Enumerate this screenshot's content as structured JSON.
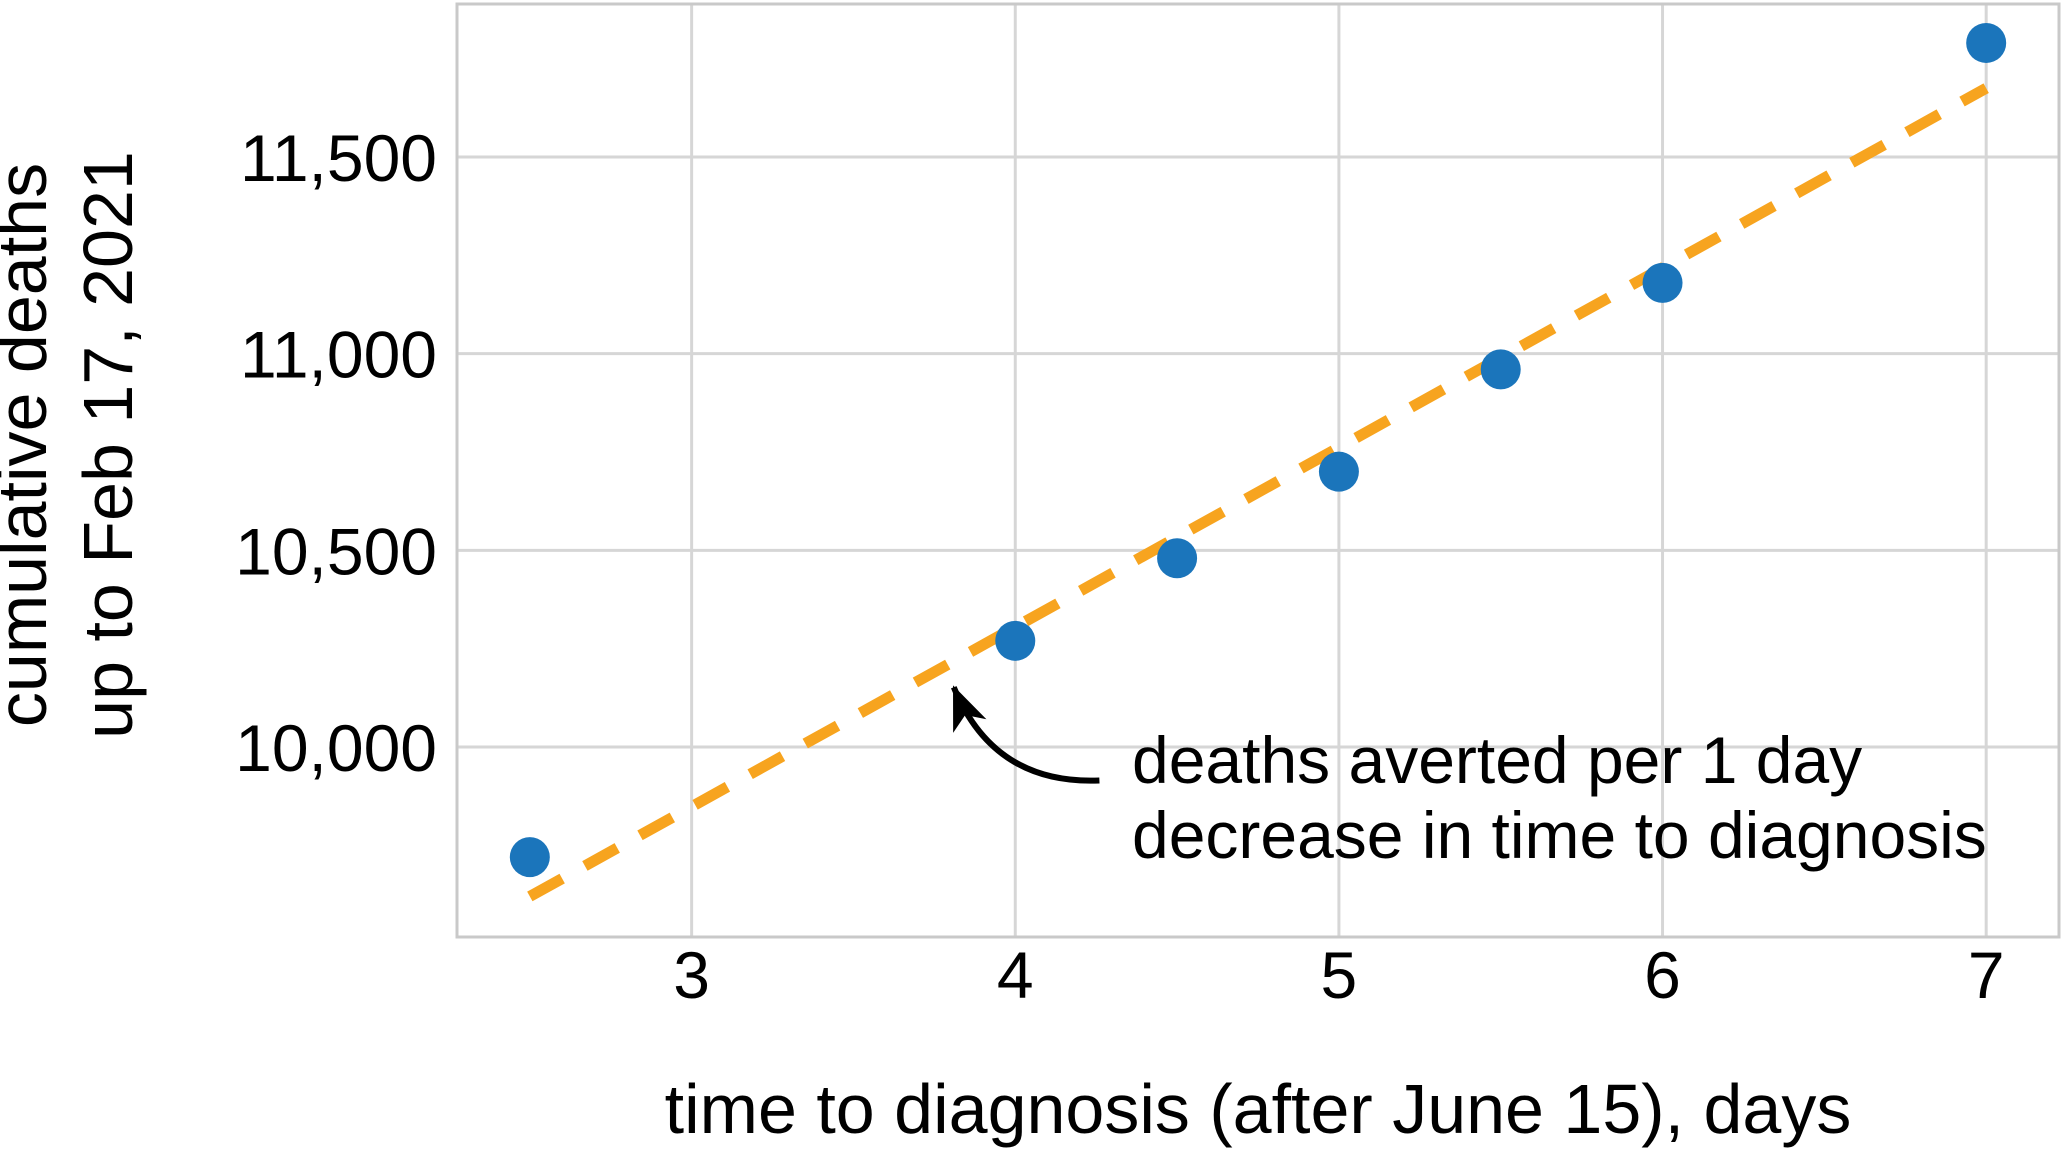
{
  "chart_data": {
    "type": "scatter",
    "title": "",
    "xlabel": "time to diagnosis (after June 15), days",
    "ylabel_lines": [
      "cumulative deaths",
      "up to Feb 17, 2021"
    ],
    "series": [
      {
        "name": "cumulative deaths vs time to diagnosis",
        "x": [
          2.5,
          4,
          4.5,
          5,
          5.5,
          6,
          7
        ],
        "y": [
          9720,
          10270,
          10480,
          10700,
          10960,
          11180,
          11790
        ]
      }
    ],
    "trendline": {
      "style": "dashed",
      "x_start": 2.5,
      "y_start": 9620,
      "x_end": 7.0,
      "y_end": 11675,
      "slope_deaths_per_day": 457
    },
    "xlim": [
      2.275,
      7.225
    ],
    "ylim": [
      9517,
      11889
    ],
    "x_ticks": [
      {
        "value": 3,
        "label": "3"
      },
      {
        "value": 4,
        "label": "4"
      },
      {
        "value": 5,
        "label": "5"
      },
      {
        "value": 6,
        "label": "6"
      },
      {
        "value": 7,
        "label": "7"
      }
    ],
    "y_ticks": [
      {
        "value": 10000,
        "label": "10,000"
      },
      {
        "value": 10500,
        "label": "10,500"
      },
      {
        "value": 11000,
        "label": "11,000"
      },
      {
        "value": 11500,
        "label": "11,500"
      }
    ],
    "grid": true,
    "legend": "none",
    "annotation": {
      "lines": [
        "deaths averted per 1 day",
        "decrease in time to diagnosis"
      ],
      "arrow_tail": [
        4.26,
        9915
      ],
      "arrow_tip": [
        3.81,
        10152
      ],
      "curvature": 0.35
    },
    "colors": {
      "point": "#1b75bb",
      "trend": "#f7a41f",
      "grid": "#d6d6d6",
      "frame": "#c9c9c9",
      "text": "#000000",
      "arrow": "#000000"
    }
  }
}
